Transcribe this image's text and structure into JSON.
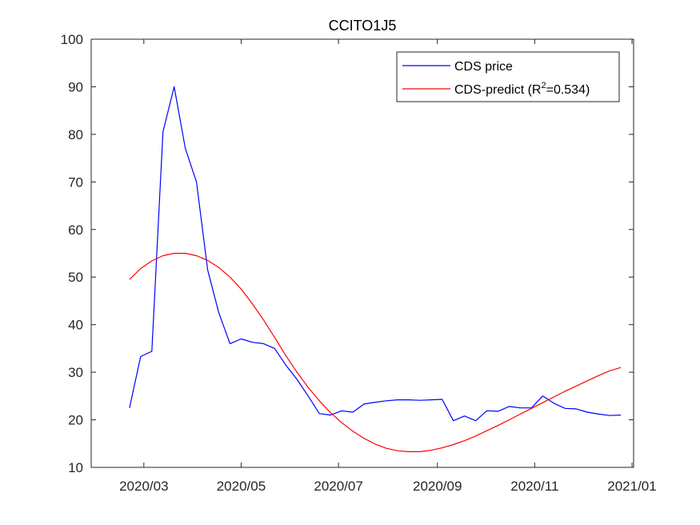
{
  "chart_data": {
    "type": "line",
    "title": "CCITO1J5",
    "xlabel": "",
    "ylabel": "",
    "x_ticks": [
      "2020/03",
      "2020/05",
      "2020/07",
      "2020/09",
      "2020/11",
      "2021/01"
    ],
    "y_ticks": [
      10,
      20,
      30,
      40,
      50,
      60,
      70,
      80,
      90,
      100
    ],
    "ylim": [
      10,
      100
    ],
    "xlim": [
      "2020-01-28",
      "2021-01-02"
    ],
    "grid": false,
    "legend_position": "top-right",
    "series": [
      {
        "name": "CDS price",
        "color": "#0000ff",
        "points": [
          [
            "2020-02-21",
            22.5
          ],
          [
            "2020-02-28",
            33.3
          ],
          [
            "2020-03-06",
            34.4
          ],
          [
            "2020-03-13",
            80.5
          ],
          [
            "2020-03-20",
            90.0
          ],
          [
            "2020-03-27",
            77.0
          ],
          [
            "2020-04-03",
            70.0
          ],
          [
            "2020-04-10",
            51.5
          ],
          [
            "2020-04-17",
            42.5
          ],
          [
            "2020-04-24",
            36.0
          ],
          [
            "2020-05-01",
            37.0
          ],
          [
            "2020-05-08",
            36.3
          ],
          [
            "2020-05-15",
            36.0
          ],
          [
            "2020-05-22",
            35.0
          ],
          [
            "2020-05-29",
            31.5
          ],
          [
            "2020-06-05",
            28.5
          ],
          [
            "2020-06-12",
            25.0
          ],
          [
            "2020-06-19",
            21.3
          ],
          [
            "2020-06-26",
            21.0
          ],
          [
            "2020-07-03",
            21.9
          ],
          [
            "2020-07-10",
            21.6
          ],
          [
            "2020-07-17",
            23.3
          ],
          [
            "2020-07-24",
            23.7
          ],
          [
            "2020-07-31",
            24.0
          ],
          [
            "2020-08-07",
            24.2
          ],
          [
            "2020-08-14",
            24.2
          ],
          [
            "2020-08-21",
            24.1
          ],
          [
            "2020-08-28",
            24.2
          ],
          [
            "2020-09-04",
            24.3
          ],
          [
            "2020-09-11",
            19.8
          ],
          [
            "2020-09-18",
            20.8
          ],
          [
            "2020-09-25",
            19.8
          ],
          [
            "2020-10-02",
            21.9
          ],
          [
            "2020-10-09",
            21.8
          ],
          [
            "2020-10-16",
            22.8
          ],
          [
            "2020-10-23",
            22.5
          ],
          [
            "2020-10-30",
            22.5
          ],
          [
            "2020-11-06",
            25.0
          ],
          [
            "2020-11-13",
            23.5
          ],
          [
            "2020-11-20",
            22.4
          ],
          [
            "2020-11-27",
            22.3
          ],
          [
            "2020-12-04",
            21.6
          ],
          [
            "2020-12-11",
            21.2
          ],
          [
            "2020-12-18",
            20.9
          ],
          [
            "2020-12-25",
            21.0
          ]
        ]
      },
      {
        "name": "CDS-predict (R",
        "legend_superscript": "2",
        "legend_suffix": "=0.534)",
        "color": "#ff0000",
        "points": [
          [
            "2020-02-21",
            49.5
          ],
          [
            "2020-02-28",
            51.8
          ],
          [
            "2020-03-06",
            53.4
          ],
          [
            "2020-03-13",
            54.5
          ],
          [
            "2020-03-20",
            55.0
          ],
          [
            "2020-03-27",
            55.0
          ],
          [
            "2020-04-03",
            54.5
          ],
          [
            "2020-04-10",
            53.5
          ],
          [
            "2020-04-17",
            52.0
          ],
          [
            "2020-04-24",
            50.0
          ],
          [
            "2020-05-01",
            47.5
          ],
          [
            "2020-05-08",
            44.4
          ],
          [
            "2020-05-15",
            41.0
          ],
          [
            "2020-05-22",
            37.3
          ],
          [
            "2020-05-29",
            33.5
          ],
          [
            "2020-06-05",
            30.0
          ],
          [
            "2020-06-12",
            26.8
          ],
          [
            "2020-06-19",
            24.0
          ],
          [
            "2020-06-26",
            21.5
          ],
          [
            "2020-07-03",
            19.4
          ],
          [
            "2020-07-10",
            17.6
          ],
          [
            "2020-07-17",
            16.1
          ],
          [
            "2020-07-24",
            14.9
          ],
          [
            "2020-07-31",
            14.0
          ],
          [
            "2020-08-07",
            13.5
          ],
          [
            "2020-08-14",
            13.3
          ],
          [
            "2020-08-21",
            13.3
          ],
          [
            "2020-08-28",
            13.6
          ],
          [
            "2020-09-04",
            14.1
          ],
          [
            "2020-09-11",
            14.8
          ],
          [
            "2020-09-18",
            15.6
          ],
          [
            "2020-09-25",
            16.6
          ],
          [
            "2020-10-02",
            17.7
          ],
          [
            "2020-10-09",
            18.8
          ],
          [
            "2020-10-16",
            20.0
          ],
          [
            "2020-10-23",
            21.2
          ],
          [
            "2020-10-30",
            22.4
          ],
          [
            "2020-11-06",
            23.6
          ],
          [
            "2020-11-13",
            24.8
          ],
          [
            "2020-11-20",
            26.0
          ],
          [
            "2020-11-27",
            27.1
          ],
          [
            "2020-12-04",
            28.2
          ],
          [
            "2020-12-11",
            29.3
          ],
          [
            "2020-12-18",
            30.3
          ],
          [
            "2020-12-25",
            31.0
          ]
        ]
      }
    ]
  }
}
